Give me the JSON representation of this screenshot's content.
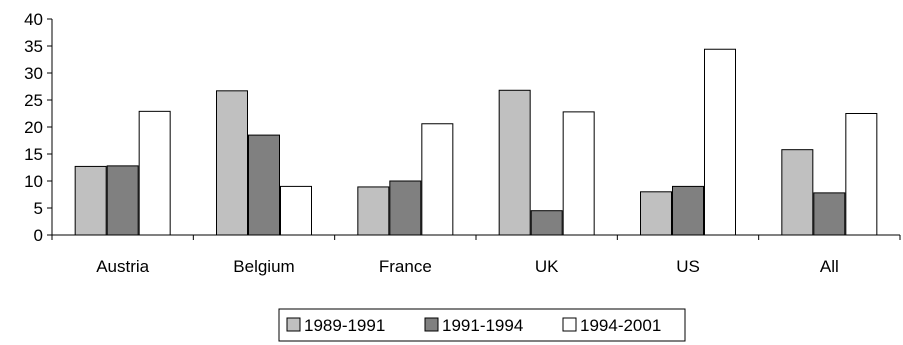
{
  "chart_data": {
    "type": "bar",
    "title": "",
    "xlabel": "",
    "ylabel": "",
    "ylim": [
      0,
      40
    ],
    "y_ticks": [
      0,
      5,
      10,
      15,
      20,
      25,
      30,
      35,
      40
    ],
    "categories": [
      "Austria",
      "Belgium",
      "France",
      "UK",
      "US",
      "All"
    ],
    "series": [
      {
        "name": "1989-1991",
        "values": [
          12.7,
          26.7,
          8.9,
          26.8,
          8.0,
          15.8
        ],
        "color": "#c0c0c0"
      },
      {
        "name": "1991-1994",
        "values": [
          12.8,
          18.5,
          10.0,
          4.5,
          9.0,
          7.8
        ],
        "color": "#808080"
      },
      {
        "name": "1994-2001",
        "values": [
          22.9,
          9.0,
          20.6,
          22.8,
          34.4,
          22.5
        ],
        "color": "#ffffff"
      }
    ],
    "grid": false,
    "legend_position": "bottom"
  }
}
